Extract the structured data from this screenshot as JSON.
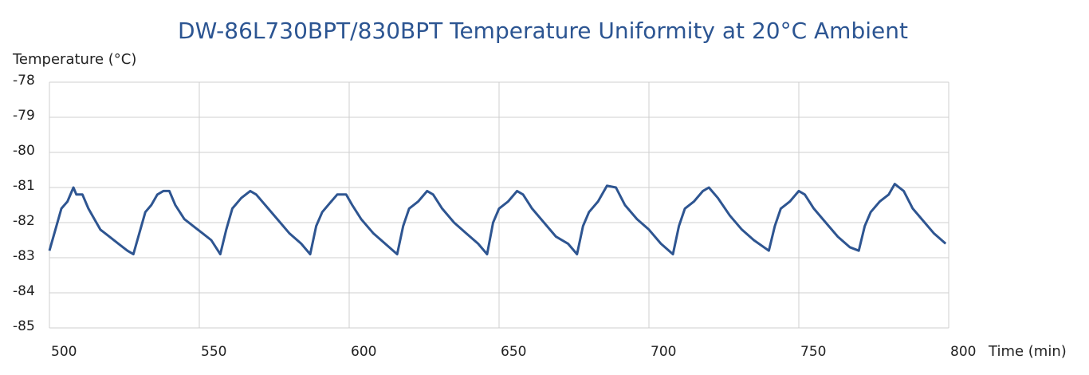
{
  "chart_data": {
    "type": "line",
    "title": "DW-86L730BPT/830BPT Temperature Uniformity at 20°C Ambient",
    "y_label": "Temperature (°C)",
    "x_label": "Time (min)",
    "xlim": [
      500,
      800
    ],
    "xticks": [
      500,
      550,
      600,
      650,
      700,
      750,
      800
    ],
    "ylim": [
      -85,
      -78
    ],
    "yticks": [
      -78,
      -79,
      -80,
      -81,
      -82,
      -83,
      -84,
      -85
    ],
    "grid": true,
    "x": [
      500,
      502,
      504,
      506,
      508,
      509,
      511,
      513,
      515,
      517,
      520,
      523,
      526,
      528,
      530,
      532,
      534,
      536,
      538,
      540,
      542,
      545,
      548,
      551,
      554,
      557,
      559,
      561,
      564,
      567,
      569,
      572,
      576,
      580,
      584,
      587,
      589,
      591,
      594,
      596,
      599,
      601,
      604,
      608,
      612,
      616,
      618,
      620,
      623,
      626,
      628,
      631,
      635,
      639,
      643,
      646,
      648,
      650,
      653,
      656,
      658,
      661,
      665,
      669,
      673,
      676,
      678,
      680,
      683,
      686,
      689,
      692,
      696,
      700,
      704,
      708,
      710,
      712,
      715,
      718,
      720,
      723,
      727,
      731,
      735,
      740,
      742,
      744,
      747,
      750,
      752,
      755,
      759,
      763,
      767,
      770,
      772,
      774,
      777,
      780,
      782,
      785,
      788,
      791,
      795,
      799
    ],
    "series": [
      {
        "name": "Temperature",
        "color": "#2e5591",
        "values": [
          -82.8,
          -82.2,
          -81.6,
          -81.4,
          -81.0,
          -81.2,
          -81.2,
          -81.6,
          -81.9,
          -82.2,
          -82.4,
          -82.6,
          -82.8,
          -82.9,
          -82.3,
          -81.7,
          -81.5,
          -81.2,
          -81.1,
          -81.1,
          -81.5,
          -81.9,
          -82.1,
          -82.3,
          -82.5,
          -82.9,
          -82.2,
          -81.6,
          -81.3,
          -81.1,
          -81.2,
          -81.5,
          -81.9,
          -82.3,
          -82.6,
          -82.9,
          -82.1,
          -81.7,
          -81.4,
          -81.2,
          -81.2,
          -81.5,
          -81.9,
          -82.3,
          -82.6,
          -82.9,
          -82.1,
          -81.6,
          -81.4,
          -81.1,
          -81.2,
          -81.6,
          -82.0,
          -82.3,
          -82.6,
          -82.9,
          -82.0,
          -81.6,
          -81.4,
          -81.1,
          -81.2,
          -81.6,
          -82.0,
          -82.4,
          -82.6,
          -82.9,
          -82.1,
          -81.7,
          -81.4,
          -80.95,
          -81.0,
          -81.5,
          -81.9,
          -82.2,
          -82.6,
          -82.9,
          -82.1,
          -81.6,
          -81.4,
          -81.1,
          -81.0,
          -81.3,
          -81.8,
          -82.2,
          -82.5,
          -82.8,
          -82.1,
          -81.6,
          -81.4,
          -81.1,
          -81.2,
          -81.6,
          -82.0,
          -82.4,
          -82.7,
          -82.8,
          -82.1,
          -81.7,
          -81.4,
          -81.2,
          -80.9,
          -81.1,
          -81.6,
          -81.9,
          -82.3,
          -82.6
        ]
      }
    ]
  }
}
